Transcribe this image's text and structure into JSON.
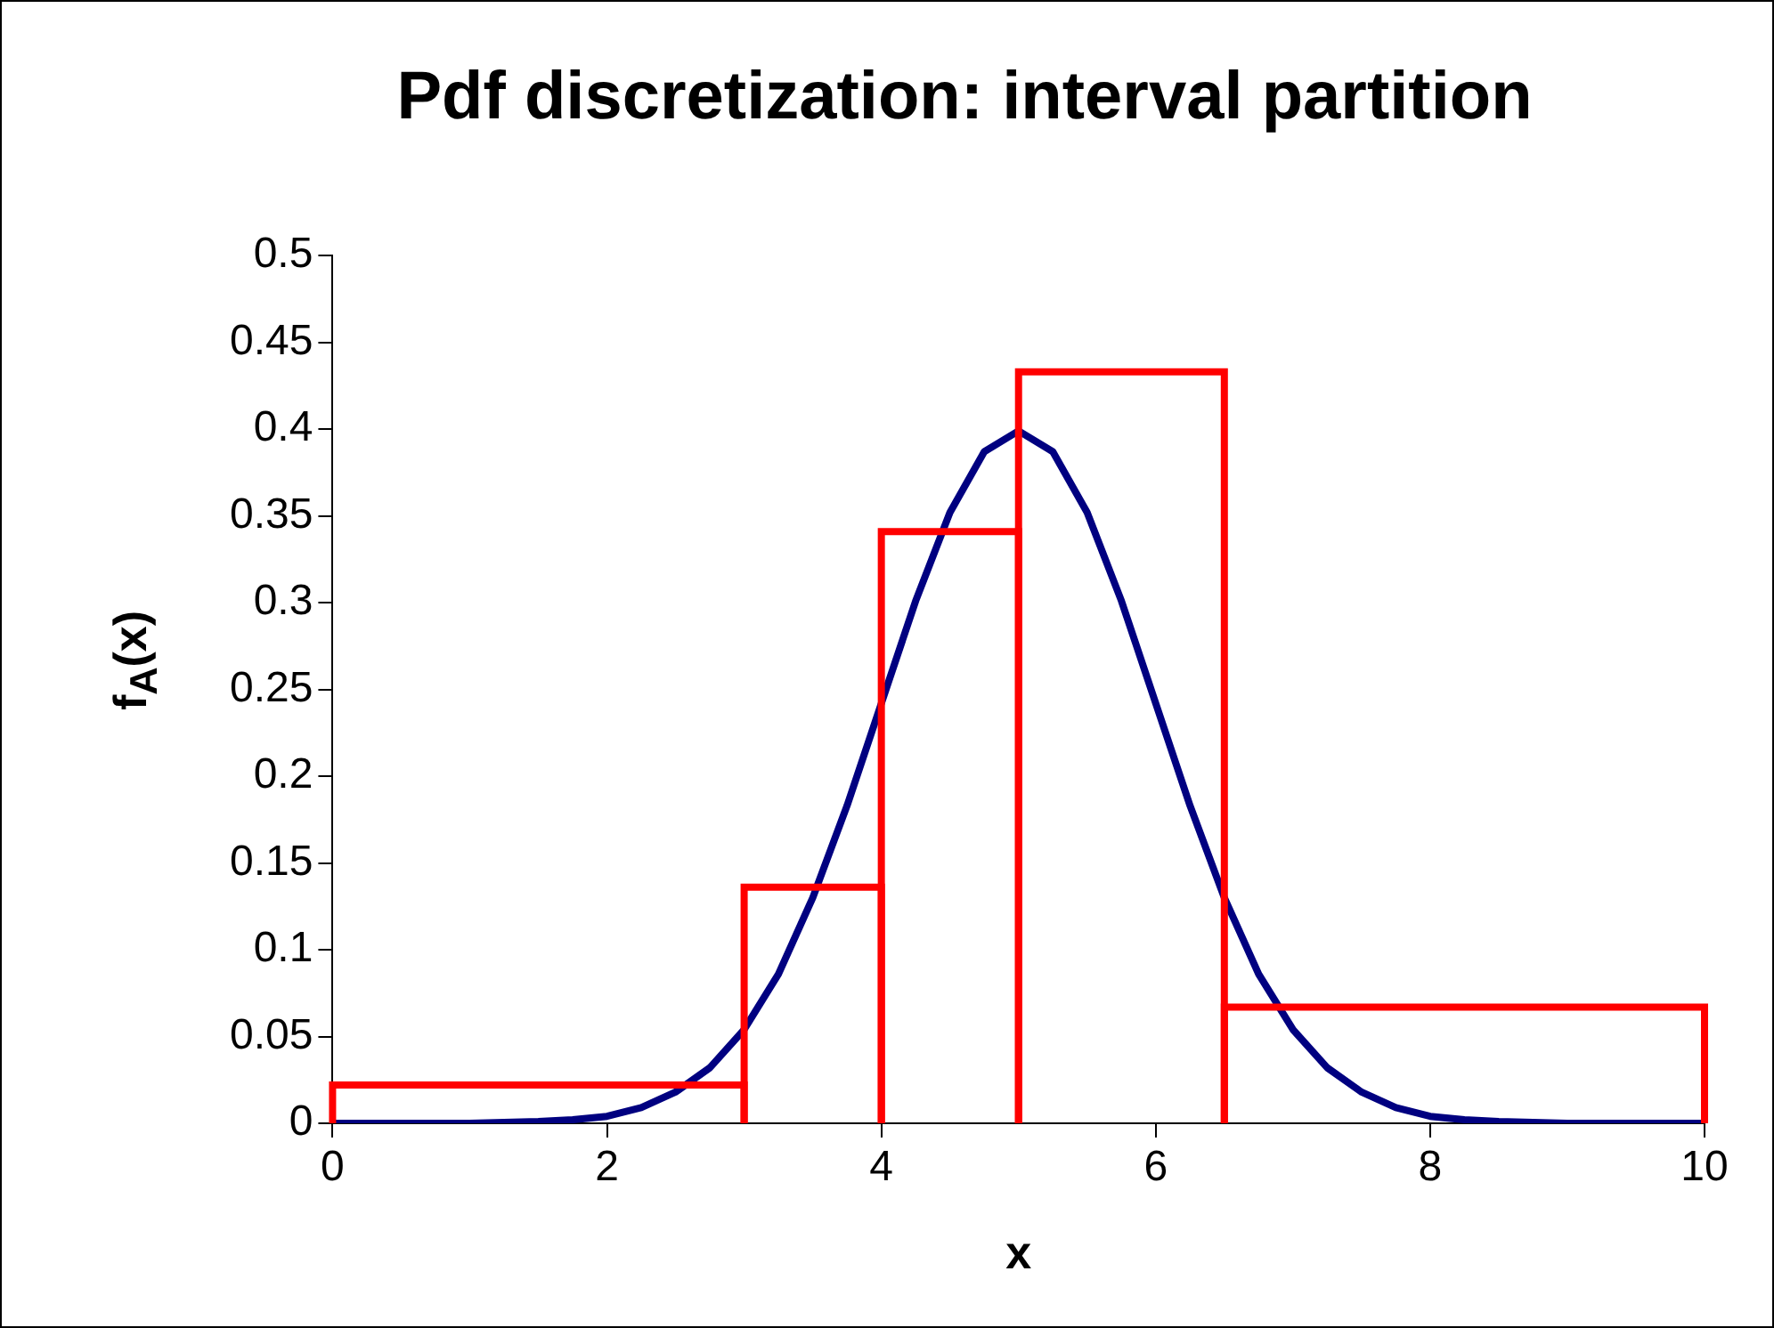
{
  "chart_data": {
    "type": "histogram",
    "title": "Pdf discretization: interval partition",
    "xlabel": "x",
    "ylabel": "f$_{A}$(x)",
    "xlim": [
      0,
      10
    ],
    "xticks": [
      0,
      2,
      4,
      6,
      8,
      10
    ],
    "ylim": [
      0,
      0.5
    ],
    "yticks": [
      0,
      0.05,
      0.1,
      0.15,
      0.2,
      0.25,
      0.3,
      0.35,
      0.4,
      0.45,
      0.5
    ],
    "legend": false,
    "series": [
      {
        "type": "line",
        "color": "#000080",
        "x": [
          0,
          1,
          1.5,
          1.75,
          2,
          2.25,
          2.5,
          2.75,
          3,
          3.25,
          3.5,
          3.75,
          4,
          4.25,
          4.5,
          4.75,
          5,
          5.25,
          5.5,
          5.75,
          6,
          6.25,
          6.5,
          6.75,
          7,
          7.25,
          7.5,
          7.75,
          8,
          8.25,
          8.5,
          9,
          10
        ],
        "values": [
          0,
          0,
          0.001,
          0.002,
          0.004,
          0.009,
          0.018,
          0.032,
          0.054,
          0.086,
          0.13,
          0.183,
          0.242,
          0.301,
          0.352,
          0.387,
          0.399,
          0.387,
          0.352,
          0.301,
          0.242,
          0.183,
          0.13,
          0.086,
          0.054,
          0.032,
          0.018,
          0.009,
          0.004,
          0.002,
          0.001,
          0,
          0
        ]
      },
      {
        "color": "#ff0000",
        "bins": [
          0,
          3,
          4,
          5,
          6.5,
          10
        ],
        "values": [
          0.022,
          0.136,
          0.341,
          0.433,
          0.067
        ]
      }
    ]
  }
}
